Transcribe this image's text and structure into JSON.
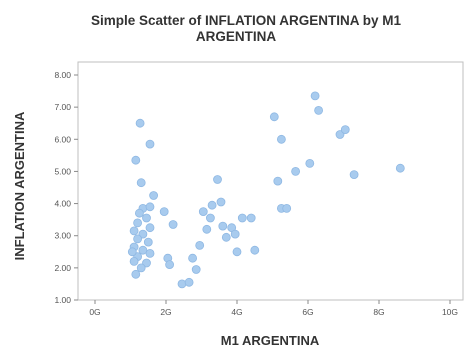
{
  "chart_data": {
    "type": "scatter",
    "title_line1": "Simple Scatter of INFLATION ARGENTINA by M1",
    "title_line2": "ARGENTINA",
    "xlabel": "M1 ARGENTINA",
    "ylabel": "INFLATION ARGENTINA",
    "xlim": [
      0,
      10
    ],
    "ylim": [
      1.0,
      8.0
    ],
    "x_ticks": [
      {
        "value": 0,
        "label": "0G"
      },
      {
        "value": 2,
        "label": "2G"
      },
      {
        "value": 4,
        "label": "4G"
      },
      {
        "value": 6,
        "label": "6G"
      },
      {
        "value": 8,
        "label": "8G"
      },
      {
        "value": 10,
        "label": "10G"
      }
    ],
    "y_ticks": [
      {
        "value": 1,
        "label": "1.00"
      },
      {
        "value": 2,
        "label": "2.00"
      },
      {
        "value": 3,
        "label": "3.00"
      },
      {
        "value": 4,
        "label": "4.00"
      },
      {
        "value": 5,
        "label": "5.00"
      },
      {
        "value": 6,
        "label": "6.00"
      },
      {
        "value": 7,
        "label": "7.00"
      },
      {
        "value": 8,
        "label": "8.00"
      }
    ],
    "grid": false,
    "point_color": "#a8cbee",
    "points": [
      [
        1.27,
        6.5
      ],
      [
        1.55,
        5.85
      ],
      [
        1.15,
        5.35
      ],
      [
        1.3,
        4.65
      ],
      [
        1.65,
        4.25
      ],
      [
        1.35,
        3.85
      ],
      [
        1.55,
        3.9
      ],
      [
        1.25,
        3.7
      ],
      [
        1.45,
        3.55
      ],
      [
        1.2,
        3.4
      ],
      [
        1.55,
        3.25
      ],
      [
        1.1,
        3.15
      ],
      [
        1.35,
        3.05
      ],
      [
        1.2,
        2.9
      ],
      [
        1.5,
        2.8
      ],
      [
        1.1,
        2.65
      ],
      [
        1.35,
        2.55
      ],
      [
        1.55,
        2.45
      ],
      [
        1.2,
        2.35
      ],
      [
        1.45,
        2.15
      ],
      [
        1.1,
        2.2
      ],
      [
        1.3,
        2.0
      ],
      [
        1.15,
        1.8
      ],
      [
        1.05,
        2.5
      ],
      [
        1.95,
        3.75
      ],
      [
        2.05,
        2.3
      ],
      [
        2.1,
        2.1
      ],
      [
        2.2,
        3.35
      ],
      [
        2.45,
        1.5
      ],
      [
        2.65,
        1.55
      ],
      [
        2.75,
        2.3
      ],
      [
        2.85,
        1.95
      ],
      [
        2.95,
        2.7
      ],
      [
        3.05,
        3.75
      ],
      [
        3.15,
        3.2
      ],
      [
        3.25,
        3.55
      ],
      [
        3.3,
        3.95
      ],
      [
        3.45,
        4.75
      ],
      [
        3.55,
        4.05
      ],
      [
        3.6,
        3.3
      ],
      [
        3.7,
        2.95
      ],
      [
        3.85,
        3.25
      ],
      [
        3.95,
        3.05
      ],
      [
        4.0,
        2.5
      ],
      [
        4.15,
        3.55
      ],
      [
        4.4,
        3.55
      ],
      [
        4.5,
        2.55
      ],
      [
        5.05,
        6.7
      ],
      [
        5.15,
        4.7
      ],
      [
        5.25,
        6.0
      ],
      [
        5.25,
        3.85
      ],
      [
        5.4,
        3.85
      ],
      [
        5.65,
        5.0
      ],
      [
        6.05,
        5.25
      ],
      [
        6.2,
        7.35
      ],
      [
        6.3,
        6.9
      ],
      [
        6.9,
        6.15
      ],
      [
        7.05,
        6.3
      ],
      [
        7.3,
        4.9
      ],
      [
        8.6,
        5.1
      ]
    ]
  }
}
